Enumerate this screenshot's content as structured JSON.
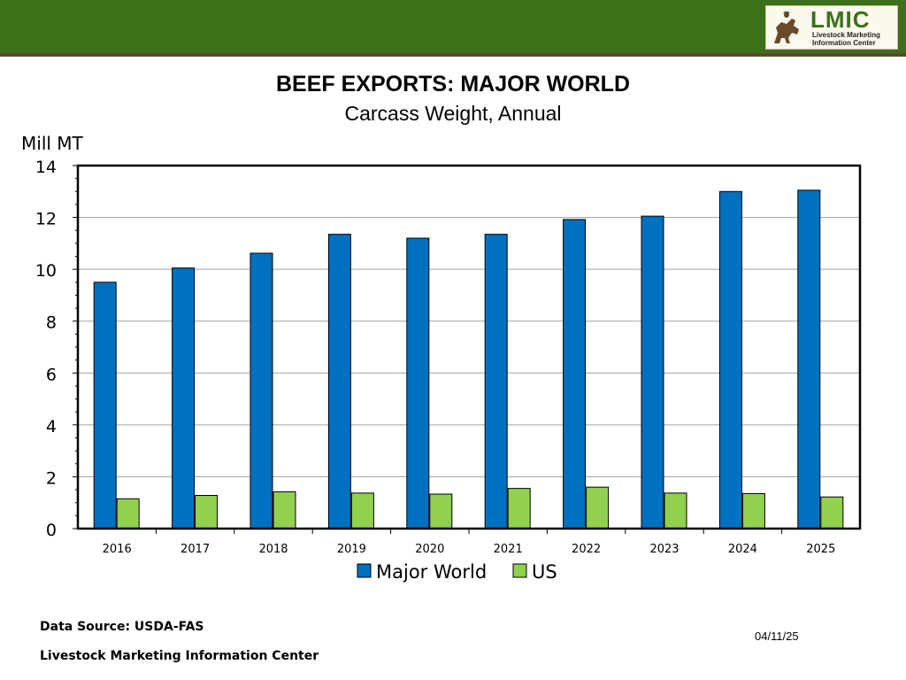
{
  "header": {
    "logo_name": "LMIC",
    "logo_line1": "Livestock Marketing",
    "logo_line2": "Information Center",
    "brand_color": "#3e6f19"
  },
  "chart_data": {
    "type": "bar",
    "title": "BEEF EXPORTS: MAJOR WORLD",
    "subtitle": "Carcass Weight, Annual",
    "ylabel": "Mill MT",
    "xlabel": "",
    "ylim": [
      0,
      14
    ],
    "yticks": [
      "0",
      "2",
      "4",
      "6",
      "8",
      "10",
      "12",
      "14"
    ],
    "grid": true,
    "legend_position": "bottom",
    "categories": [
      "2016",
      "2017",
      "2018",
      "2019",
      "2020",
      "2021",
      "2022",
      "2023",
      "2024",
      "2025"
    ],
    "series": [
      {
        "name": "Major World",
        "color": "#0070c0",
        "values": [
          9.5,
          10.05,
          10.62,
          11.35,
          11.2,
          11.35,
          11.92,
          12.05,
          13.0,
          13.05
        ]
      },
      {
        "name": "US",
        "color": "#92d050",
        "values": [
          1.15,
          1.28,
          1.42,
          1.37,
          1.33,
          1.55,
          1.6,
          1.37,
          1.35,
          1.22
        ]
      }
    ]
  },
  "footer": {
    "source": "Data Source:  USDA-FAS",
    "organization": "Livestock Marketing Information Center",
    "date": "04/11/25"
  }
}
